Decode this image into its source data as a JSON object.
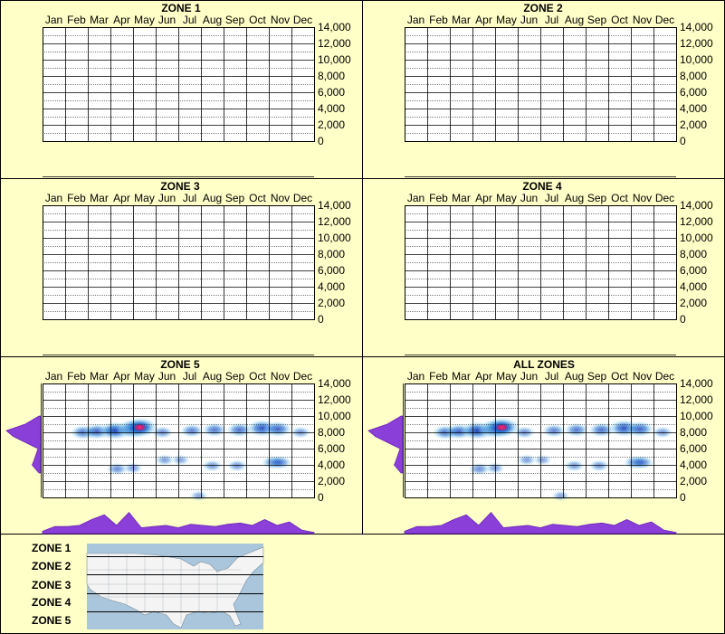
{
  "months": [
    "Jan",
    "Feb",
    "Mar",
    "Apr",
    "May",
    "Jun",
    "Jul",
    "Aug",
    "Sep",
    "Oct",
    "Nov",
    "Dec"
  ],
  "y_ticks": [
    "14,000",
    "12,000",
    "10,000",
    "8,000",
    "6,000",
    "4,000",
    "2,000",
    "0"
  ],
  "legend_zones": [
    "ZONE 1",
    "ZONE 2",
    "ZONE 3",
    "ZONE 4",
    "ZONE 5"
  ],
  "colors": {
    "background": "#ffffc8",
    "grid": "#000000",
    "density_low": "#a8dcf0",
    "density_high": "#0a2fb0",
    "peak": "#ff2a78",
    "marginal": "#8a3fd8",
    "map_water": "#a9c6dc",
    "map_land": "#f4f4f4"
  },
  "chart_data": [
    {
      "type": "heatmap",
      "title": "ZONE 1",
      "ylim": [
        0,
        14000
      ],
      "data": []
    },
    {
      "type": "heatmap",
      "title": "ZONE 2",
      "ylim": [
        0,
        14000
      ],
      "data": []
    },
    {
      "type": "heatmap",
      "title": "ZONE 3",
      "ylim": [
        0,
        14000
      ],
      "data": []
    },
    {
      "type": "heatmap",
      "title": "ZONE 4",
      "ylim": [
        0,
        14000
      ],
      "data": []
    },
    {
      "type": "heatmap",
      "title": "ZONE 5",
      "ylim": [
        0,
        14000
      ],
      "data": [
        {
          "month": 1.8,
          "elev": 8000,
          "w": 0.55
        },
        {
          "month": 2.4,
          "elev": 8100,
          "w": 0.65
        },
        {
          "month": 3.2,
          "elev": 8200,
          "w": 0.85
        },
        {
          "month": 4.0,
          "elev": 8400,
          "w": 0.9
        },
        {
          "month": 4.3,
          "elev": 8600,
          "w": 1.0
        },
        {
          "month": 5.3,
          "elev": 8000,
          "w": 0.35
        },
        {
          "month": 6.6,
          "elev": 8200,
          "w": 0.45
        },
        {
          "month": 7.6,
          "elev": 8300,
          "w": 0.5
        },
        {
          "month": 8.7,
          "elev": 8300,
          "w": 0.55
        },
        {
          "month": 9.7,
          "elev": 8500,
          "w": 0.75
        },
        {
          "month": 10.4,
          "elev": 8400,
          "w": 0.65
        },
        {
          "month": 11.4,
          "elev": 8000,
          "w": 0.3
        },
        {
          "month": 3.3,
          "elev": 3500,
          "w": 0.35
        },
        {
          "month": 4.0,
          "elev": 3600,
          "w": 0.25
        },
        {
          "month": 5.4,
          "elev": 4600,
          "w": 0.25
        },
        {
          "month": 6.1,
          "elev": 4600,
          "w": 0.2
        },
        {
          "month": 7.5,
          "elev": 3900,
          "w": 0.3
        },
        {
          "month": 8.6,
          "elev": 3900,
          "w": 0.3
        },
        {
          "month": 10.2,
          "elev": 4300,
          "w": 0.45
        },
        {
          "month": 10.5,
          "elev": 4300,
          "w": 0.45
        },
        {
          "month": 6.9,
          "elev": 200,
          "w": 0.2
        }
      ],
      "elev_profile": [
        {
          "elev": 3000,
          "v": 0.05
        },
        {
          "elev": 4000,
          "v": 0.25
        },
        {
          "elev": 4500,
          "v": 0.2
        },
        {
          "elev": 6000,
          "v": 0.08
        },
        {
          "elev": 7500,
          "v": 0.8
        },
        {
          "elev": 8200,
          "v": 1.0
        },
        {
          "elev": 9000,
          "v": 0.45
        },
        {
          "elev": 10000,
          "v": 0.05
        }
      ],
      "month_profile": [
        0.1,
        0.3,
        0.3,
        0.35,
        0.6,
        0.8,
        0.35,
        0.9,
        0.25,
        0.3,
        0.35,
        0.25,
        0.4,
        0.35,
        0.3,
        0.4,
        0.45,
        0.35,
        0.6,
        0.35,
        0.5,
        0.15,
        0.05
      ]
    },
    {
      "type": "heatmap",
      "title": "ALL ZONES",
      "ylim": [
        0,
        14000
      ],
      "data": [
        {
          "month": 1.8,
          "elev": 8000,
          "w": 0.55
        },
        {
          "month": 2.4,
          "elev": 8100,
          "w": 0.65
        },
        {
          "month": 3.2,
          "elev": 8200,
          "w": 0.85
        },
        {
          "month": 4.0,
          "elev": 8400,
          "w": 0.9
        },
        {
          "month": 4.3,
          "elev": 8600,
          "w": 1.0
        },
        {
          "month": 5.3,
          "elev": 8000,
          "w": 0.35
        },
        {
          "month": 6.6,
          "elev": 8200,
          "w": 0.45
        },
        {
          "month": 7.6,
          "elev": 8300,
          "w": 0.5
        },
        {
          "month": 8.7,
          "elev": 8300,
          "w": 0.55
        },
        {
          "month": 9.7,
          "elev": 8500,
          "w": 0.75
        },
        {
          "month": 10.4,
          "elev": 8400,
          "w": 0.65
        },
        {
          "month": 11.4,
          "elev": 8000,
          "w": 0.3
        },
        {
          "month": 3.3,
          "elev": 3500,
          "w": 0.35
        },
        {
          "month": 4.0,
          "elev": 3600,
          "w": 0.25
        },
        {
          "month": 5.4,
          "elev": 4600,
          "w": 0.25
        },
        {
          "month": 6.1,
          "elev": 4600,
          "w": 0.2
        },
        {
          "month": 7.5,
          "elev": 3900,
          "w": 0.3
        },
        {
          "month": 8.6,
          "elev": 3900,
          "w": 0.3
        },
        {
          "month": 10.2,
          "elev": 4300,
          "w": 0.45
        },
        {
          "month": 10.5,
          "elev": 4300,
          "w": 0.45
        },
        {
          "month": 6.9,
          "elev": 200,
          "w": 0.2
        }
      ],
      "elev_profile": [
        {
          "elev": 3000,
          "v": 0.05
        },
        {
          "elev": 4000,
          "v": 0.25
        },
        {
          "elev": 4500,
          "v": 0.2
        },
        {
          "elev": 6000,
          "v": 0.08
        },
        {
          "elev": 7500,
          "v": 0.8
        },
        {
          "elev": 8200,
          "v": 1.0
        },
        {
          "elev": 9000,
          "v": 0.45
        },
        {
          "elev": 10000,
          "v": 0.05
        }
      ],
      "month_profile": [
        0.1,
        0.3,
        0.3,
        0.35,
        0.6,
        0.8,
        0.35,
        0.9,
        0.25,
        0.3,
        0.35,
        0.25,
        0.4,
        0.35,
        0.3,
        0.4,
        0.45,
        0.35,
        0.6,
        0.35,
        0.5,
        0.15,
        0.05
      ]
    }
  ]
}
